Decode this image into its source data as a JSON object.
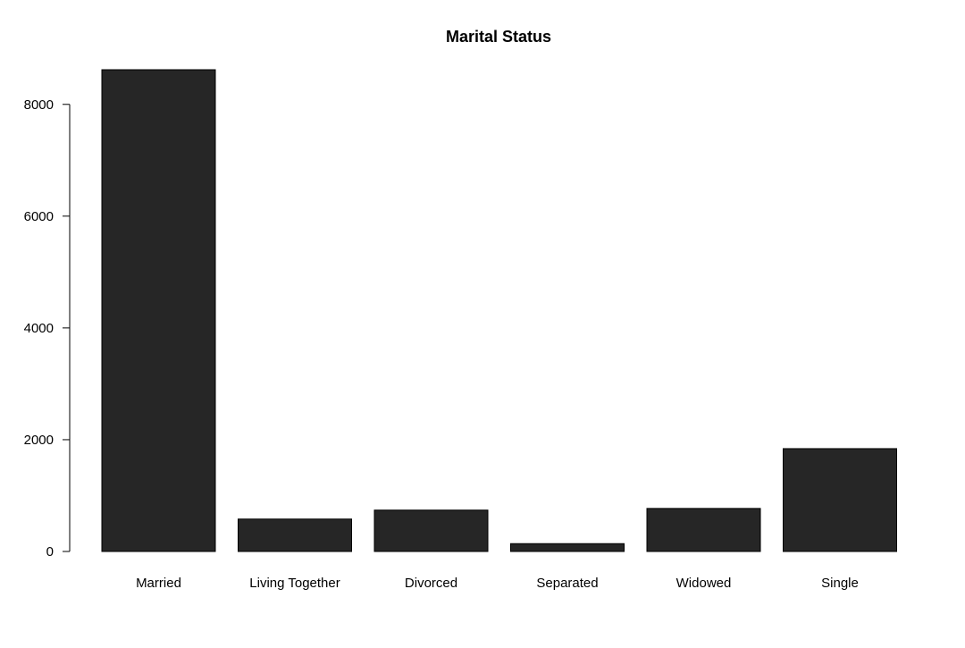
{
  "chart_data": {
    "type": "bar",
    "title": "Marital Status",
    "xlabel": "",
    "ylabel": "",
    "categories": [
      "Married",
      "Living Together",
      "Divorced",
      "Separated",
      "Widowed",
      "Single"
    ],
    "values": [
      8620,
      580,
      740,
      140,
      770,
      1840
    ],
    "ylim": [
      0,
      8620
    ],
    "yticks": [
      0,
      2000,
      4000,
      6000,
      8000
    ],
    "grid": false,
    "legend": "none",
    "bar_color": "#262626",
    "bar_edge_color": "#000000"
  }
}
